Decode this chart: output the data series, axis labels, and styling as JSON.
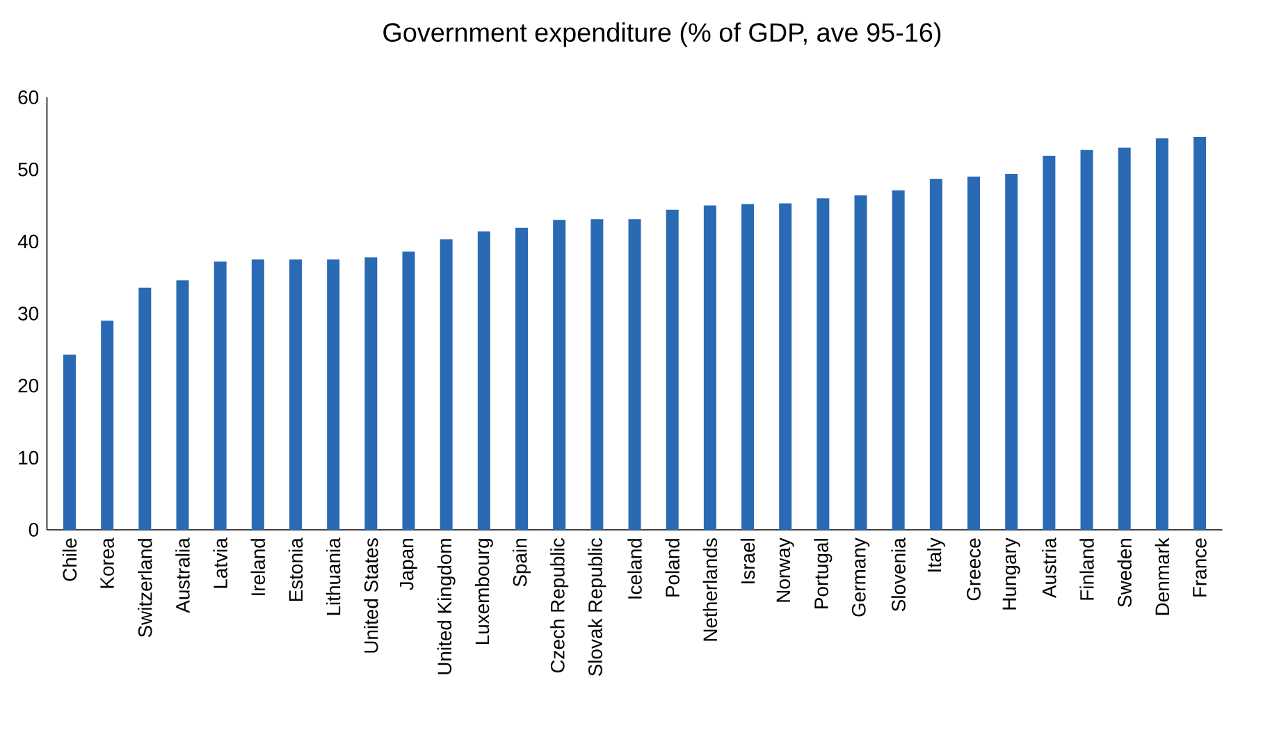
{
  "chart_data": {
    "type": "bar",
    "title": "Government expenditure (% of GDP, ave 95-16)",
    "categories": [
      "Chile",
      "Korea",
      "Switzerland",
      "Australia",
      "Latvia",
      "Ireland",
      "Estonia",
      "Lithuania",
      "United States",
      "Japan",
      "United Kingdom",
      "Luxembourg",
      "Spain",
      "Czech Republic",
      "Slovak Republic",
      "Iceland",
      "Poland",
      "Netherlands",
      "Israel",
      "Norway",
      "Portugal",
      "Germany",
      "Slovenia",
      "Italy",
      "Greece",
      "Hungary",
      "Austria",
      "Finland",
      "Sweden",
      "Denmark",
      "France"
    ],
    "values": [
      24.3,
      29,
      33.6,
      34.6,
      37.2,
      37.5,
      37.5,
      37.5,
      37.8,
      38.6,
      40.3,
      41.4,
      41.9,
      43,
      43.1,
      43.1,
      44.4,
      45,
      45.2,
      45.3,
      46,
      46.4,
      47.1,
      48.7,
      49,
      49.4,
      51.9,
      52.7,
      53,
      54.3,
      54.5
    ],
    "color": "#2a6ab4",
    "ylim": [
      0,
      60
    ],
    "yticks": [
      0,
      10,
      20,
      30,
      40,
      50,
      60
    ],
    "grid": false
  }
}
